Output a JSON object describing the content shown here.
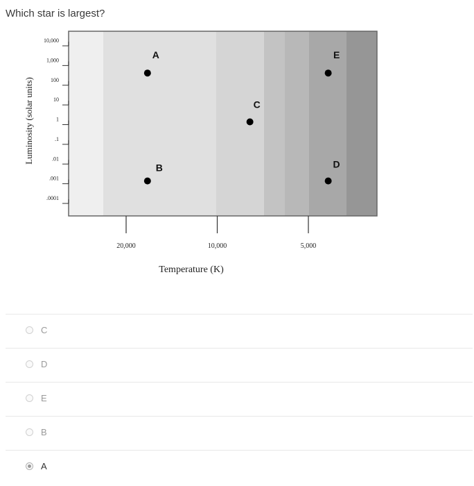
{
  "question": "Which star is largest?",
  "chart_data": {
    "type": "scatter",
    "title": "",
    "xlabel": "Temperature (K)",
    "ylabel": "Luminosity (solar units)",
    "x_scale": "log",
    "x_reversed": true,
    "x_ticks": [
      {
        "value": 20000,
        "label": "20,000"
      },
      {
        "value": 10000,
        "label": "10,000"
      },
      {
        "value": 5000,
        "label": "5,000"
      }
    ],
    "y_scale": "log",
    "y_ticks": [
      {
        "value": 10000,
        "label": "10,000"
      },
      {
        "value": 1000,
        "label": "1,000"
      },
      {
        "value": 100,
        "label": "100"
      },
      {
        "value": 10,
        "label": "10"
      },
      {
        "value": 1,
        "label": "1"
      },
      {
        "value": 0.1,
        "label": ".1"
      },
      {
        "value": 0.01,
        "label": ".01"
      },
      {
        "value": 0.001,
        "label": ".001"
      },
      {
        "value": 0.0001,
        "label": ".0001"
      }
    ],
    "points": [
      {
        "label": "A",
        "x": 17000,
        "y": 300
      },
      {
        "label": "B",
        "x": 17000,
        "y": 0.001
      },
      {
        "label": "C",
        "x": 7800,
        "y": 1
      },
      {
        "label": "D",
        "x": 4300,
        "y": 0.001
      },
      {
        "label": "E",
        "x": 4300,
        "y": 300
      }
    ],
    "background_bands": [
      "#efefef",
      "#e0e0e0",
      "#d5d5d5",
      "#c3c3c3",
      "#b8b8b8",
      "#a8a8a8",
      "#969696"
    ]
  },
  "options": [
    {
      "label": "C",
      "selected": false
    },
    {
      "label": "D",
      "selected": false
    },
    {
      "label": "E",
      "selected": false
    },
    {
      "label": "B",
      "selected": false
    },
    {
      "label": "A",
      "selected": true
    }
  ]
}
